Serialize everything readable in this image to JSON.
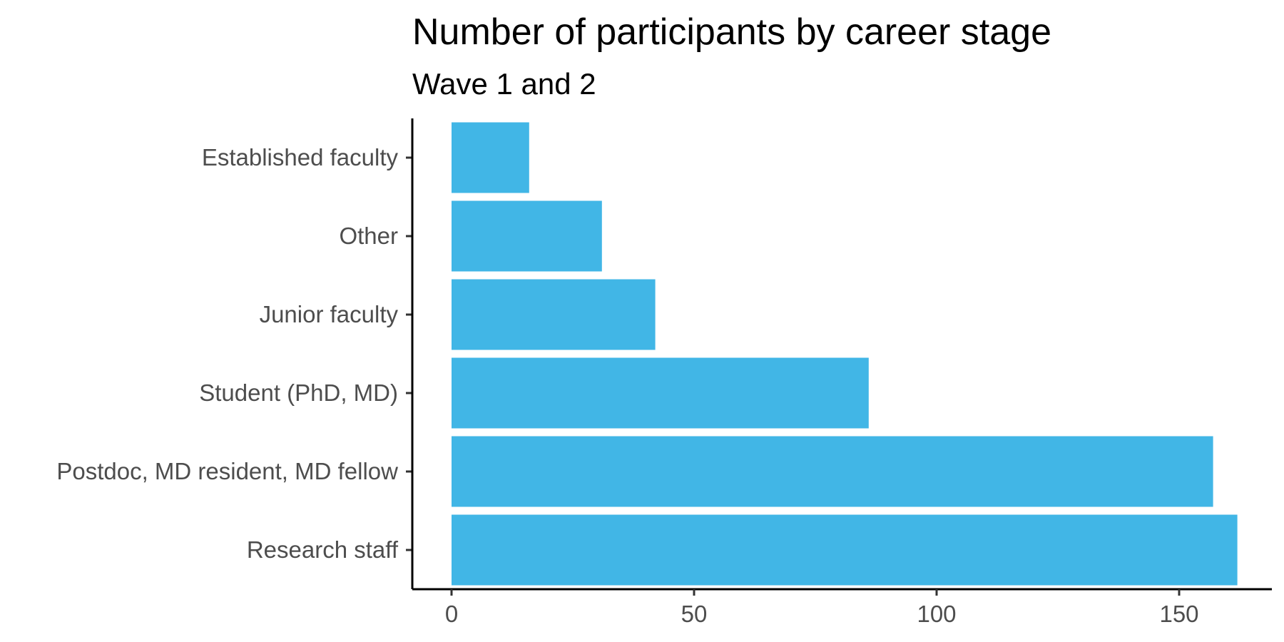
{
  "chart_data": {
    "type": "bar",
    "orientation": "horizontal",
    "title": "Number of participants by career stage",
    "subtitle": "Wave 1 and 2",
    "xlabel": "",
    "ylabel": "",
    "categories": [
      "Research staff",
      "Postdoc, MD resident, MD fellow",
      "Student (PhD, MD)",
      "Junior faculty",
      "Other",
      "Established faculty"
    ],
    "values": [
      162,
      157,
      86,
      42,
      31,
      16
    ],
    "xlim": [
      0,
      167
    ],
    "x_ticks": [
      0,
      50,
      100,
      150
    ],
    "bar_color": "#41b6e6",
    "grid": false,
    "legend": "none"
  }
}
